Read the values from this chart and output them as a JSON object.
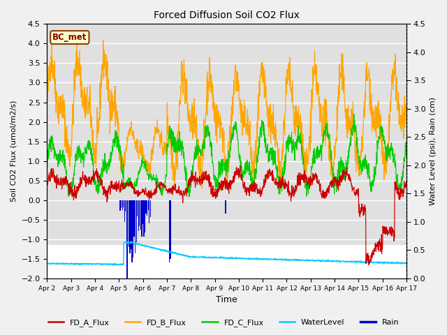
{
  "title": "Forced Diffusion Soil CO2 Flux",
  "xlabel": "Time",
  "ylabel_left": "Soil CO2 Flux (umol/m2/s)",
  "ylabel_right": "Water Level (psi), Rain (cm)",
  "ylim_left": [
    -2.0,
    4.5
  ],
  "ylim_right": [
    0.0,
    4.5
  ],
  "xlim": [
    0,
    15
  ],
  "x_tick_labels": [
    "Apr 2",
    "Apr 3",
    "Apr 4",
    "Apr 5",
    "Apr 6",
    "Apr 7",
    "Apr 8",
    "Apr 9",
    "Apr 10",
    "Apr 11",
    "Apr 12",
    "Apr 13",
    "Apr 14",
    "Apr 15",
    "Apr 16",
    "Apr 17"
  ],
  "bc_met_label": "BC_met",
  "color_A": "#cc0000",
  "color_B": "#ffa500",
  "color_C": "#00cc00",
  "color_water": "#00ccff",
  "color_rain": "#0000cc",
  "background_color": "#f0f0f0",
  "legend_labels": [
    "FD_A_Flux",
    "FD_B_Flux",
    "FD_C_Flux",
    "WaterLevel",
    "Rain"
  ]
}
